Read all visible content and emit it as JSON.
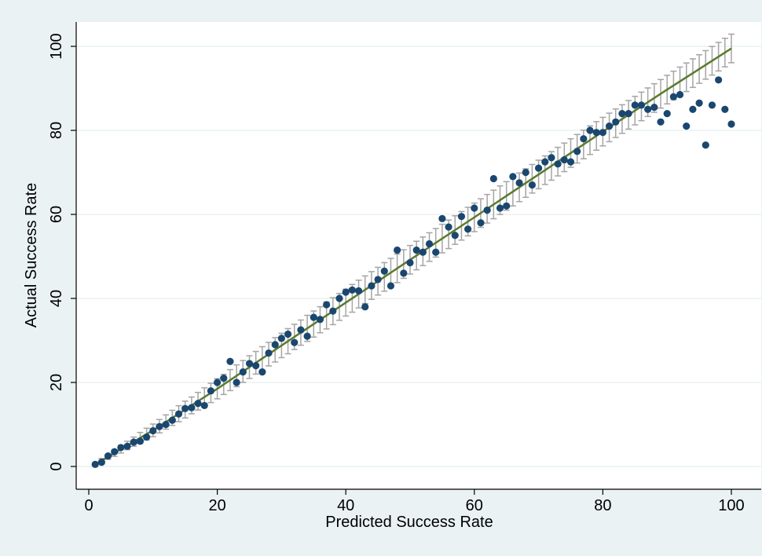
{
  "chart_data": {
    "type": "scatter",
    "title": "",
    "xlabel": "Predicted Success Rate",
    "ylabel": "Actual Success Rate",
    "xlim": [
      0,
      100
    ],
    "ylim": [
      0,
      100
    ],
    "xticks": [
      0,
      20,
      40,
      60,
      80,
      100
    ],
    "yticks": [
      0,
      20,
      40,
      60,
      80,
      100
    ],
    "grid": true,
    "legend": "none",
    "colors": {
      "background": "#eaf2f3",
      "plot_area": "#ffffff",
      "gridline": "#eaf2f3",
      "points": "#1a476f",
      "fit_line": "#5b7a2e",
      "error_bars": "#a5a5a5"
    },
    "series": [
      {
        "kind": "points",
        "x": [
          1,
          2,
          3,
          4,
          5,
          6,
          7,
          8,
          9,
          10,
          11,
          12,
          13,
          14,
          15,
          16,
          17,
          18,
          19,
          20,
          21,
          22,
          23,
          24,
          25,
          26,
          27,
          28,
          29,
          30,
          31,
          32,
          33,
          34,
          35,
          36,
          37,
          38,
          39,
          40,
          41,
          42,
          43,
          44,
          45,
          46,
          47,
          48,
          49,
          50,
          51,
          52,
          53,
          54,
          55,
          56,
          57,
          58,
          59,
          60,
          61,
          62,
          63,
          64,
          65,
          66,
          67,
          68,
          69,
          70,
          71,
          72,
          73,
          74,
          75,
          76,
          77,
          78,
          79,
          80,
          81,
          82,
          83,
          84,
          85,
          86,
          87,
          88,
          89,
          90,
          91,
          92,
          93,
          94,
          95,
          96,
          97,
          98,
          99,
          100
        ],
        "y": [
          0.5,
          1.0,
          2.5,
          3.5,
          4.5,
          4.8,
          5.8,
          6.0,
          7.0,
          8.5,
          9.5,
          10.0,
          11.0,
          12.5,
          13.8,
          14.0,
          15.0,
          14.5,
          18.0,
          20.0,
          21.0,
          25.0,
          20.0,
          22.5,
          24.5,
          24.0,
          22.5,
          27.0,
          29.0,
          30.5,
          31.5,
          29.5,
          32.5,
          31.0,
          35.5,
          35.0,
          38.5,
          37.0,
          40.0,
          41.5,
          42.0,
          41.8,
          38.0,
          43.0,
          44.5,
          46.5,
          43.0,
          51.5,
          46.0,
          48.5,
          51.5,
          51.0,
          53.0,
          51.0,
          59.0,
          57.0,
          55.0,
          59.5,
          56.5,
          61.5,
          58.0,
          61.0,
          68.5,
          61.5,
          62.0,
          69.0,
          67.5,
          70.0,
          67.0,
          71.0,
          72.5,
          73.5,
          72.0,
          73.0,
          72.5,
          75.0,
          78.0,
          80.0,
          79.5,
          79.5,
          81.0,
          82.0,
          84.0,
          84.0,
          86.0,
          86.0,
          85.0,
          85.5,
          82.0,
          84.0,
          88.0,
          88.5,
          81.0,
          85.0,
          86.5,
          76.5,
          86.0,
          92.0,
          85.0,
          81.5
        ]
      },
      {
        "kind": "fit_line",
        "x": [
          1,
          10,
          20,
          30,
          40,
          50,
          60,
          70,
          80,
          90,
          100
        ],
        "y": [
          0.5,
          8.6,
          18.5,
          28.8,
          39.0,
          49.2,
          59.3,
          69.5,
          79.7,
          89.7,
          99.5
        ]
      },
      {
        "kind": "error_bars",
        "half_width": [
          0.3,
          0.5,
          0.6,
          0.8,
          0.9,
          1.0,
          1.1,
          1.3,
          1.4,
          1.5,
          1.6,
          1.7,
          1.8,
          1.9,
          2.0,
          2.0,
          2.1,
          2.2,
          2.3,
          2.4,
          2.4,
          2.5,
          2.6,
          2.6,
          2.7,
          2.7,
          2.8,
          2.8,
          2.9,
          2.9,
          3.0,
          3.0,
          3.0,
          3.1,
          3.1,
          3.1,
          3.2,
          3.2,
          3.2,
          3.2,
          3.3,
          3.3,
          3.3,
          3.3,
          3.3,
          3.4,
          3.4,
          3.4,
          3.4,
          3.4,
          3.4,
          3.4,
          3.4,
          3.4,
          3.4,
          3.4,
          3.4,
          3.4,
          3.4,
          3.4,
          3.4,
          3.4,
          3.4,
          3.4,
          3.4,
          3.4,
          3.4,
          3.4,
          3.4,
          3.4,
          3.4,
          3.4,
          3.4,
          3.4,
          3.4,
          3.4,
          3.4,
          3.4,
          3.4,
          3.4,
          3.4,
          3.4,
          3.4,
          3.4,
          3.4,
          3.4,
          3.4,
          3.4,
          3.4,
          3.4,
          3.4,
          3.4,
          3.4,
          3.4,
          3.4,
          3.4,
          3.4,
          3.4,
          3.4,
          3.4
        ]
      }
    ]
  }
}
